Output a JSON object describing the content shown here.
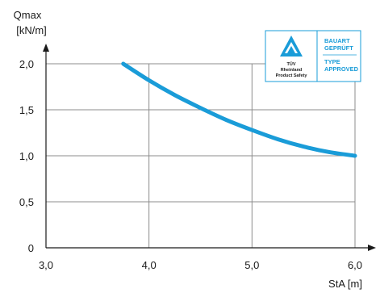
{
  "chart_data": {
    "type": "line",
    "ylabel": "Qmax",
    "ylabel_unit": "[kN/m]",
    "xlabel": "StA [m]",
    "xlim": [
      3.0,
      6.0
    ],
    "ylim": [
      0,
      2.0
    ],
    "x_ticks": [
      "3,0",
      "4,0",
      "5,0",
      "6,0"
    ],
    "y_ticks": [
      "0",
      "0,5",
      "1,0",
      "1,5",
      "2,0"
    ],
    "grid": true,
    "series": [
      {
        "color": "#1a9cd8",
        "x": [
          3.75,
          4.0,
          4.25,
          4.5,
          4.75,
          5.0,
          5.25,
          5.5,
          5.75,
          6.0
        ],
        "y": [
          2.0,
          1.82,
          1.66,
          1.52,
          1.39,
          1.28,
          1.18,
          1.1,
          1.04,
          1.0
        ]
      }
    ]
  },
  "badge": {
    "org_line1": "TÜV",
    "org_line2": "Rheinland",
    "org_line3": "Product Safety",
    "line1": "BAUART",
    "line2": "GEPRÜFT",
    "line3": "TYPE",
    "line4": "APPROVED",
    "color": "#1a9cd8"
  }
}
